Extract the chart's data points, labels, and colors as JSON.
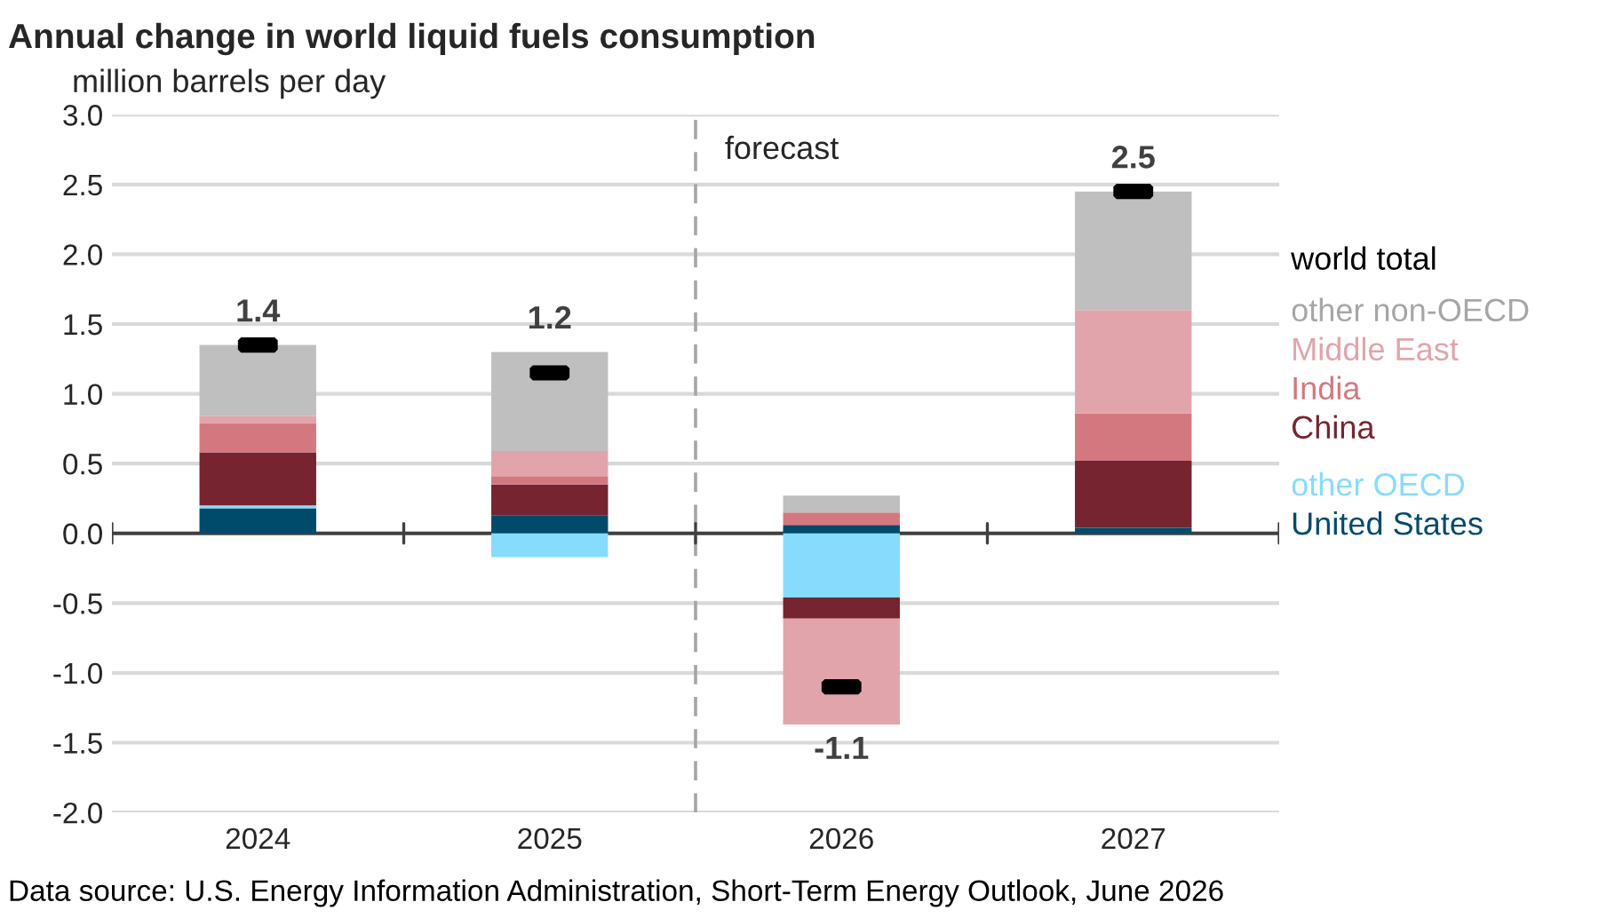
{
  "chart_data": {
    "type": "bar",
    "stacked": true,
    "title": "Annual change in world liquid fuels consumption",
    "ylabel": "million barrels per day",
    "categories": [
      "2024",
      "2025",
      "2026",
      "2027"
    ],
    "series": [
      {
        "name": "United States",
        "color": "#004b6b",
        "values": [
          0.18,
          0.13,
          0.06,
          0.04
        ]
      },
      {
        "name": "other OECD",
        "color": "#87dcfd",
        "values": [
          0.02,
          -0.17,
          -0.46,
          0.0
        ]
      },
      {
        "name": "China",
        "color": "#76242f",
        "values": [
          0.38,
          0.22,
          -0.15,
          0.48
        ]
      },
      {
        "name": "India",
        "color": "#d47880",
        "values": [
          0.21,
          0.06,
          0.09,
          0.34
        ]
      },
      {
        "name": "Middle East",
        "color": "#e2a4ab",
        "values": [
          0.05,
          0.18,
          -0.76,
          0.74
        ]
      },
      {
        "name": "other non-OECD",
        "color": "#bfbfbf",
        "values": [
          0.51,
          0.71,
          0.12,
          0.85
        ]
      },
      {
        "name": "world total",
        "type": "scatter",
        "color": "#000000",
        "values": [
          1.35,
          1.15,
          -1.1,
          2.45
        ],
        "value_labels": [
          "1.4",
          "1.2",
          "-1.1",
          "2.5"
        ]
      }
    ],
    "ylim": [
      -2.0,
      3.0
    ],
    "yticks": [
      {
        "value": -2.0,
        "label": "-2.0"
      },
      {
        "value": -1.5,
        "label": "-1.5"
      },
      {
        "value": -1.0,
        "label": "-1.0"
      },
      {
        "value": -0.5,
        "label": "-0.5"
      },
      {
        "value": 0.0,
        "label": "0.0"
      },
      {
        "value": 0.5,
        "label": "0.5"
      },
      {
        "value": 1.0,
        "label": "1.0"
      },
      {
        "value": 1.5,
        "label": "1.5"
      },
      {
        "value": 2.0,
        "label": "2.0"
      },
      {
        "value": 2.5,
        "label": "2.5"
      },
      {
        "value": 3.0,
        "label": "3.0"
      }
    ],
    "grid": "y",
    "legend": "right",
    "ref_lines": [
      {
        "axis": "x",
        "value": "2026",
        "label": "forecast",
        "color": "#a6a6a6",
        "line_style": "dashed"
      }
    ],
    "annotations": [
      "Data source: U.S. Energy Information Administration, Short-Term Energy Outlook, June 2026"
    ]
  }
}
